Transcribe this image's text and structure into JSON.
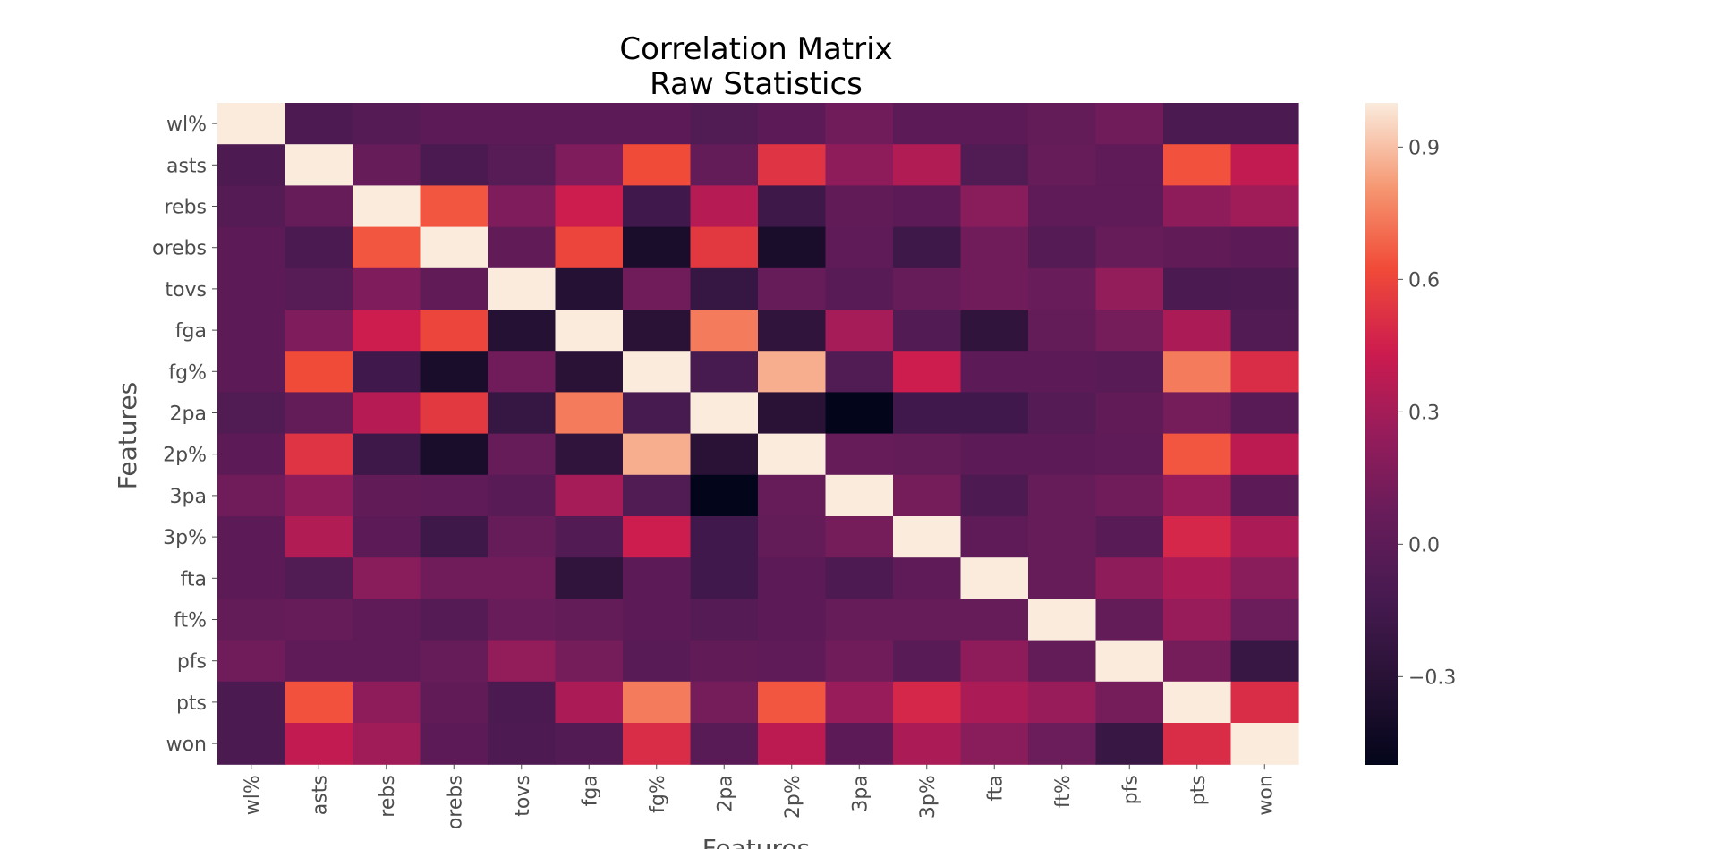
{
  "chart_data": {
    "type": "heatmap",
    "title": "Correlation Matrix",
    "subtitle": "Raw Statistics",
    "xlabel": "Features",
    "ylabel": "Features",
    "labels": [
      "wl%",
      "asts",
      "rebs",
      "orebs",
      "tovs",
      "fga",
      "fg%",
      "2pa",
      "2p%",
      "3pa",
      "3p%",
      "fta",
      "ft%",
      "pfs",
      "pts",
      "won"
    ],
    "colorbar": {
      "min": -0.5,
      "max": 1.0,
      "ticks": [
        -0.3,
        0.0,
        0.3,
        0.6,
        0.9
      ],
      "tick_labels": [
        "−0.3",
        "0.0",
        "0.3",
        "0.6",
        "0.9"
      ]
    },
    "matrix": [
      [
        1.0,
        -0.08,
        -0.04,
        0.0,
        0.0,
        0.0,
        0.0,
        -0.06,
        0.0,
        0.1,
        0.0,
        0.0,
        0.04,
        0.1,
        -0.1,
        -0.1
      ],
      [
        -0.08,
        1.0,
        0.05,
        -0.1,
        -0.03,
        0.16,
        0.62,
        0.04,
        0.53,
        0.22,
        0.34,
        -0.06,
        0.05,
        0.02,
        0.64,
        0.4
      ],
      [
        -0.04,
        0.05,
        1.0,
        0.65,
        0.16,
        0.44,
        -0.16,
        0.36,
        -0.18,
        0.03,
        0.0,
        0.2,
        0.02,
        0.02,
        0.22,
        0.28
      ],
      [
        0.0,
        -0.1,
        0.65,
        1.0,
        0.03,
        0.6,
        -0.38,
        0.55,
        -0.38,
        0.01,
        -0.18,
        0.1,
        -0.04,
        0.06,
        0.03,
        0.0
      ],
      [
        0.0,
        -0.03,
        0.16,
        0.03,
        1.0,
        -0.32,
        0.1,
        -0.22,
        0.05,
        -0.02,
        0.05,
        0.1,
        0.07,
        0.24,
        -0.1,
        -0.08
      ],
      [
        0.0,
        0.16,
        0.44,
        0.6,
        -0.32,
        1.0,
        -0.3,
        0.74,
        -0.26,
        0.3,
        -0.05,
        -0.26,
        0.04,
        0.12,
        0.32,
        -0.05
      ],
      [
        0.0,
        0.62,
        -0.16,
        -0.38,
        0.1,
        -0.3,
        1.0,
        -0.12,
        0.86,
        -0.06,
        0.44,
        0.0,
        0.0,
        -0.02,
        0.74,
        0.5
      ],
      [
        -0.06,
        0.04,
        0.36,
        0.55,
        -0.22,
        0.74,
        -0.12,
        1.0,
        -0.3,
        -0.5,
        -0.16,
        -0.16,
        -0.04,
        0.03,
        0.12,
        -0.02
      ],
      [
        0.0,
        0.53,
        -0.18,
        -0.38,
        0.05,
        -0.26,
        0.86,
        -0.3,
        1.0,
        0.05,
        0.04,
        0.0,
        0.0,
        0.02,
        0.65,
        0.38
      ],
      [
        0.1,
        0.22,
        0.03,
        0.01,
        -0.02,
        0.3,
        -0.06,
        -0.5,
        0.05,
        1.0,
        0.12,
        -0.08,
        0.06,
        0.1,
        0.26,
        0.0
      ],
      [
        0.0,
        0.34,
        0.0,
        -0.18,
        0.05,
        -0.05,
        0.44,
        -0.16,
        0.04,
        0.12,
        1.0,
        0.02,
        0.06,
        -0.02,
        0.48,
        0.32
      ],
      [
        0.0,
        -0.06,
        0.2,
        0.1,
        0.1,
        -0.26,
        0.0,
        -0.16,
        0.0,
        -0.08,
        0.02,
        1.0,
        0.06,
        0.22,
        0.32,
        0.2
      ],
      [
        0.04,
        0.05,
        0.02,
        -0.04,
        0.07,
        0.04,
        0.0,
        -0.04,
        0.0,
        0.06,
        0.06,
        0.06,
        1.0,
        0.04,
        0.26,
        0.08
      ],
      [
        0.1,
        0.02,
        0.02,
        0.06,
        0.24,
        0.12,
        -0.02,
        0.03,
        0.02,
        0.1,
        -0.02,
        0.22,
        0.04,
        1.0,
        0.12,
        -0.2
      ],
      [
        -0.1,
        0.64,
        0.22,
        0.03,
        -0.1,
        0.32,
        0.74,
        0.12,
        0.65,
        0.26,
        0.48,
        0.32,
        0.26,
        0.12,
        1.0,
        0.5
      ],
      [
        -0.1,
        0.4,
        0.28,
        0.0,
        -0.08,
        -0.05,
        0.5,
        -0.02,
        0.38,
        0.0,
        0.32,
        0.2,
        0.08,
        -0.2,
        0.5,
        1.0
      ]
    ]
  }
}
